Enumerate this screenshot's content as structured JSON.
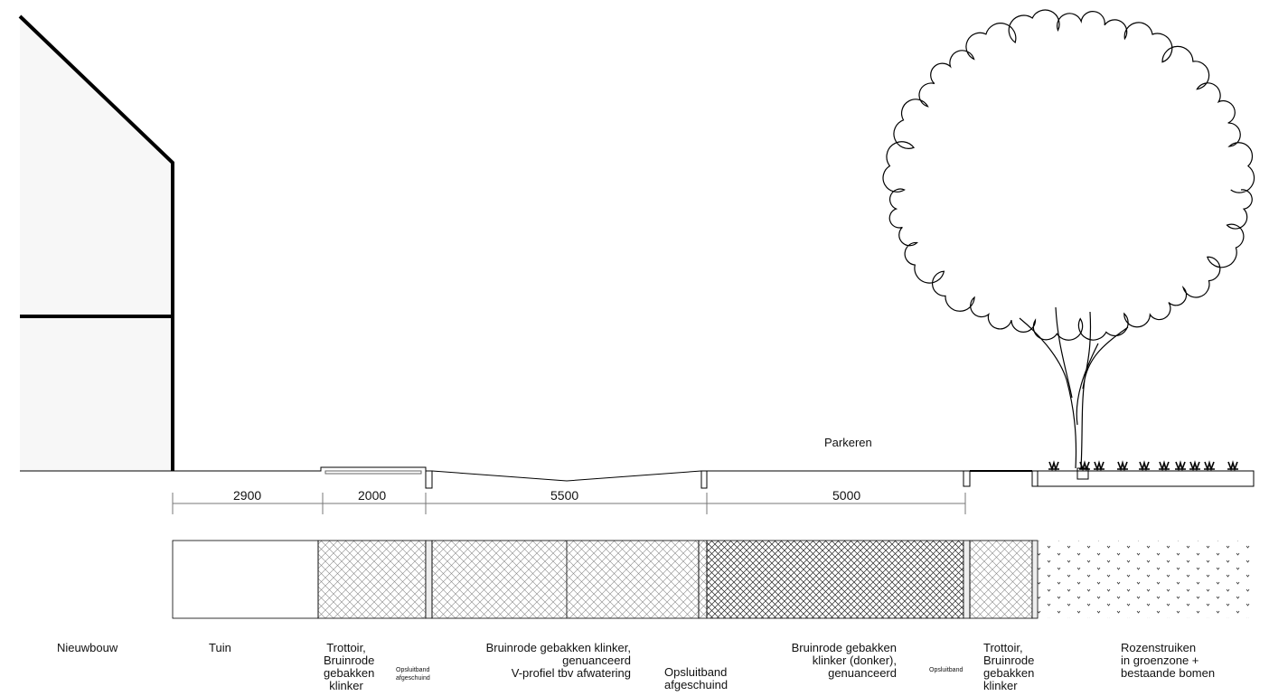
{
  "dimensions": [
    "2900",
    "2000",
    "5500",
    "5000"
  ],
  "zone_label": "Parkeren",
  "labels": [
    {
      "lines": [
        "Nieuwbouw"
      ]
    },
    {
      "lines": [
        "Tuin"
      ]
    },
    {
      "lines": [
        "Trottoir,",
        "Bruinrode",
        "gebakken",
        "klinker"
      ]
    },
    {
      "lines": [
        "Opsluitband",
        "afgeschuind"
      ]
    },
    {
      "lines": [
        "Bruinrode gebakken klinker,",
        "genuanceerd",
        "V-profiel tbv afwatering"
      ]
    },
    {
      "lines": [
        "Opsluitband",
        "afgeschuind"
      ]
    },
    {
      "lines": [
        "Bruinrode gebakken",
        "klinker (donker),",
        "genuanceerd"
      ]
    },
    {
      "lines": [
        "Opsluitband"
      ]
    },
    {
      "lines": [
        "Trottoir,",
        "Bruinrode",
        "gebakken",
        "klinker"
      ]
    },
    {
      "lines": [
        "Rozenstruiken",
        "in groenzone +",
        "bestaande bomen"
      ]
    }
  ]
}
